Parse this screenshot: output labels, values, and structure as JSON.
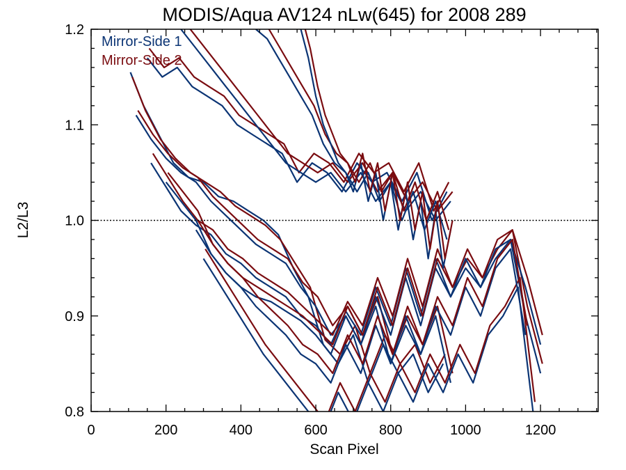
{
  "chart_data": {
    "type": "line",
    "title": "MODIS/Aqua AV124 nLw(645) for 2008 289",
    "xlabel": "Scan Pixel",
    "ylabel": "L2/L3",
    "xlim": [
      0,
      1354
    ],
    "ylim": [
      0.8,
      1.2
    ],
    "xticks": [
      0,
      200,
      400,
      600,
      800,
      1000,
      1200
    ],
    "xtick_labels": [
      "0",
      "200",
      "400",
      "600",
      "800",
      "1000",
      "1200"
    ],
    "yticks": [
      0.8,
      0.9,
      1.0,
      1.1,
      1.2
    ],
    "ytick_labels": [
      "0.8",
      "0.9",
      "1.0",
      "1.1",
      "1.2"
    ],
    "reference_line": {
      "y": 1.0,
      "style": "dotted"
    },
    "grid": false,
    "legend_position": "top-left",
    "colors": {
      "mirror_side_1": "#0b3474",
      "mirror_side_2": "#7a0c10",
      "reference": "#000000"
    },
    "legend": [
      {
        "name": "Mirror-Side 1",
        "color": "#0b3474"
      },
      {
        "name": "Mirror-Side 2",
        "color": "#7a0c10"
      }
    ],
    "series": [
      {
        "mirror": 1,
        "x": [
          105,
          140,
          180,
          220,
          260,
          300,
          340,
          380,
          420,
          460,
          500,
          540,
          580,
          620,
          660,
          700,
          740,
          780,
          820,
          860,
          900,
          940
        ],
        "y": [
          1.155,
          1.12,
          1.09,
          1.06,
          1.045,
          1.04,
          1.025,
          1.02,
          1.01,
          1.0,
          0.985,
          0.95,
          0.92,
          0.87,
          0.85,
          0.88,
          0.83,
          0.87,
          0.84,
          0.86,
          0.82,
          0.85
        ]
      },
      {
        "mirror": 2,
        "x": [
          110,
          145,
          185,
          225,
          265,
          305,
          345,
          385,
          425,
          465,
          505,
          545,
          585,
          625,
          665,
          705,
          745,
          785,
          825,
          865,
          905,
          945
        ],
        "y": [
          1.15,
          1.115,
          1.085,
          1.065,
          1.05,
          1.04,
          1.03,
          1.015,
          1.005,
          0.995,
          0.98,
          0.955,
          0.93,
          0.875,
          0.86,
          0.89,
          0.84,
          0.88,
          0.85,
          0.87,
          0.83,
          0.86
        ]
      },
      {
        "mirror": 1,
        "x": [
          120,
          160,
          200,
          240,
          280,
          320,
          360,
          400,
          440,
          480,
          520,
          560,
          600,
          640,
          680,
          720,
          760,
          800,
          840,
          880,
          920,
          960
        ],
        "y": [
          1.11,
          1.085,
          1.065,
          1.05,
          1.04,
          1.02,
          1.005,
          0.99,
          0.975,
          0.965,
          0.955,
          0.93,
          0.91,
          0.88,
          0.9,
          0.87,
          0.91,
          0.85,
          0.89,
          0.86,
          0.9,
          0.83
        ]
      },
      {
        "mirror": 2,
        "x": [
          125,
          165,
          205,
          245,
          285,
          325,
          365,
          405,
          445,
          485,
          525,
          565,
          605,
          645,
          685,
          725,
          765,
          805,
          845,
          885,
          925,
          965
        ],
        "y": [
          1.115,
          1.09,
          1.07,
          1.055,
          1.045,
          1.025,
          1.01,
          0.995,
          0.98,
          0.97,
          0.96,
          0.935,
          0.92,
          0.89,
          0.91,
          0.88,
          0.92,
          0.86,
          0.9,
          0.87,
          0.91,
          0.84
        ]
      },
      {
        "mirror": 1,
        "x": [
          160,
          200,
          240,
          280,
          320,
          360,
          400,
          440,
          480,
          520,
          560,
          600,
          640,
          680,
          720,
          760,
          800,
          840,
          880,
          920,
          960,
          1000,
          1040,
          1080,
          1120,
          1160,
          1200
        ],
        "y": [
          1.06,
          1.035,
          1.01,
          0.995,
          0.985,
          0.965,
          0.955,
          0.94,
          0.93,
          0.92,
          0.9,
          0.89,
          0.87,
          0.905,
          0.88,
          0.93,
          0.89,
          0.95,
          0.9,
          0.96,
          0.92,
          0.95,
          0.93,
          0.96,
          0.98,
          0.9,
          0.84
        ]
      },
      {
        "mirror": 2,
        "x": [
          165,
          205,
          245,
          285,
          325,
          365,
          405,
          445,
          485,
          525,
          565,
          605,
          645,
          685,
          725,
          765,
          805,
          845,
          885,
          925,
          965,
          1005,
          1045,
          1085,
          1125,
          1165,
          1205
        ],
        "y": [
          1.07,
          1.045,
          1.02,
          1.0,
          0.99,
          0.97,
          0.96,
          0.945,
          0.935,
          0.925,
          0.91,
          0.895,
          0.88,
          0.915,
          0.89,
          0.94,
          0.9,
          0.96,
          0.91,
          0.97,
          0.93,
          0.96,
          0.94,
          0.97,
          0.99,
          0.91,
          0.85
        ]
      },
      {
        "mirror": 1,
        "x": [
          200,
          240,
          280,
          320,
          360,
          400,
          440,
          480,
          520,
          560,
          600,
          640,
          680,
          720,
          760,
          800,
          840,
          880,
          920,
          960,
          1000,
          1040,
          1080,
          1120,
          1160,
          1200
        ],
        "y": [
          1.04,
          1.02,
          1.0,
          0.965,
          0.945,
          0.93,
          0.92,
          0.915,
          0.905,
          0.895,
          0.88,
          0.86,
          0.9,
          0.87,
          0.92,
          0.88,
          0.94,
          0.89,
          0.95,
          0.92,
          0.96,
          0.93,
          0.97,
          0.98,
          0.93,
          0.87
        ]
      },
      {
        "mirror": 2,
        "x": [
          205,
          245,
          285,
          325,
          365,
          405,
          445,
          485,
          525,
          565,
          605,
          645,
          685,
          725,
          765,
          805,
          845,
          885,
          925,
          965,
          1005,
          1045,
          1085,
          1125,
          1165,
          1205
        ],
        "y": [
          1.05,
          1.03,
          1.01,
          0.975,
          0.955,
          0.94,
          0.93,
          0.92,
          0.91,
          0.9,
          0.885,
          0.87,
          0.91,
          0.88,
          0.93,
          0.89,
          0.95,
          0.9,
          0.96,
          0.93,
          0.97,
          0.94,
          0.98,
          0.99,
          0.94,
          0.88
        ]
      },
      {
        "mirror": 1,
        "x": [
          300,
          340,
          380,
          420,
          460,
          500,
          540,
          580,
          620,
          660,
          700,
          740,
          780,
          820,
          860,
          900,
          940,
          980,
          1020,
          1060,
          1100,
          1140,
          1180
        ],
        "y": [
          0.96,
          0.935,
          0.91,
          0.885,
          0.86,
          0.84,
          0.82,
          0.8,
          0.78,
          0.82,
          0.79,
          0.83,
          0.8,
          0.84,
          0.81,
          0.85,
          0.82,
          0.86,
          0.83,
          0.88,
          0.9,
          0.93,
          0.8
        ]
      },
      {
        "mirror": 2,
        "x": [
          305,
          345,
          385,
          425,
          465,
          505,
          545,
          585,
          625,
          665,
          705,
          745,
          785,
          825,
          865,
          905,
          945,
          985,
          1025,
          1065,
          1105,
          1145,
          1185
        ],
        "y": [
          0.97,
          0.945,
          0.92,
          0.895,
          0.87,
          0.85,
          0.83,
          0.81,
          0.79,
          0.83,
          0.8,
          0.84,
          0.81,
          0.85,
          0.82,
          0.86,
          0.83,
          0.87,
          0.84,
          0.89,
          0.91,
          0.94,
          0.81
        ]
      },
      {
        "mirror": 1,
        "x": [
          280,
          320,
          360,
          400,
          440,
          480,
          520,
          560,
          600,
          640,
          680,
          720,
          760,
          800,
          840,
          880,
          920,
          960,
          1000,
          1040,
          1080,
          1120,
          1160
        ],
        "y": [
          0.99,
          0.965,
          0.945,
          0.93,
          0.91,
          0.895,
          0.88,
          0.86,
          0.85,
          0.83,
          0.87,
          0.84,
          0.89,
          0.85,
          0.9,
          0.86,
          0.91,
          0.88,
          0.93,
          0.9,
          0.95,
          0.97,
          0.88
        ]
      },
      {
        "mirror": 2,
        "x": [
          285,
          325,
          365,
          405,
          445,
          485,
          525,
          565,
          605,
          645,
          685,
          725,
          765,
          805,
          845,
          885,
          925,
          965,
          1005,
          1045,
          1085,
          1125,
          1165
        ],
        "y": [
          1.0,
          0.975,
          0.955,
          0.94,
          0.92,
          0.905,
          0.89,
          0.87,
          0.86,
          0.84,
          0.88,
          0.85,
          0.9,
          0.86,
          0.91,
          0.87,
          0.92,
          0.89,
          0.94,
          0.91,
          0.96,
          0.98,
          0.89
        ]
      },
      {
        "mirror": 1,
        "x": [
          150,
          190,
          230,
          270,
          310,
          350,
          390,
          430,
          470,
          510,
          550,
          590,
          630,
          670,
          710,
          750,
          790,
          830,
          870,
          910,
          950
        ],
        "y": [
          1.17,
          1.15,
          1.16,
          1.14,
          1.13,
          1.12,
          1.1,
          1.09,
          1.08,
          1.07,
          1.04,
          1.06,
          1.05,
          1.03,
          1.06,
          1.04,
          1.05,
          1.02,
          1.05,
          1.0,
          1.03
        ]
      },
      {
        "mirror": 2,
        "x": [
          155,
          195,
          235,
          275,
          315,
          355,
          395,
          435,
          475,
          515,
          555,
          595,
          635,
          675,
          715,
          755,
          795,
          835,
          875,
          915,
          955
        ],
        "y": [
          1.18,
          1.16,
          1.17,
          1.15,
          1.14,
          1.13,
          1.11,
          1.1,
          1.09,
          1.08,
          1.05,
          1.07,
          1.06,
          1.04,
          1.07,
          1.05,
          1.06,
          1.03,
          1.06,
          1.01,
          1.04
        ]
      },
      {
        "mirror": 1,
        "x": [
          240,
          280,
          320,
          360,
          400,
          440,
          480,
          520,
          560,
          600,
          640,
          680,
          720,
          760,
          800,
          840,
          880,
          920,
          960
        ],
        "y": [
          1.2,
          1.18,
          1.16,
          1.14,
          1.12,
          1.1,
          1.08,
          1.06,
          1.05,
          1.04,
          1.05,
          1.03,
          1.05,
          1.02,
          1.04,
          1.01,
          1.03,
          1.0,
          1.02
        ]
      },
      {
        "mirror": 2,
        "x": [
          245,
          285,
          325,
          365,
          405,
          445,
          485,
          525,
          565,
          605,
          645,
          685,
          725,
          765,
          805,
          845,
          885,
          925,
          965
        ],
        "y": [
          1.21,
          1.19,
          1.17,
          1.15,
          1.13,
          1.11,
          1.09,
          1.07,
          1.06,
          1.05,
          1.06,
          1.04,
          1.06,
          1.03,
          1.05,
          1.02,
          1.04,
          1.01,
          1.03
        ]
      },
      {
        "mirror": 1,
        "x": [
          440,
          470,
          500,
          530,
          560,
          590,
          620,
          650,
          680,
          710,
          740,
          770,
          800,
          830,
          860,
          890,
          920,
          950
        ],
        "y": [
          1.2,
          1.19,
          1.17,
          1.15,
          1.13,
          1.11,
          1.08,
          1.06,
          1.05,
          1.03,
          1.05,
          1.02,
          1.04,
          1.0,
          1.03,
          0.99,
          1.02,
          0.98
        ]
      },
      {
        "mirror": 2,
        "x": [
          445,
          475,
          505,
          535,
          565,
          595,
          625,
          655,
          685,
          715,
          745,
          775,
          805,
          835,
          865,
          895,
          925,
          955
        ],
        "y": [
          1.21,
          1.2,
          1.18,
          1.16,
          1.14,
          1.12,
          1.09,
          1.07,
          1.06,
          1.04,
          1.06,
          1.03,
          1.05,
          1.01,
          1.04,
          1.0,
          1.03,
          0.99
        ]
      },
      {
        "mirror": 1,
        "x": [
          560,
          580,
          600,
          620,
          640,
          660,
          680,
          700,
          720,
          740,
          760,
          780,
          800,
          820,
          840,
          860,
          880,
          900,
          920,
          940,
          960
        ],
        "y": [
          1.2,
          1.17,
          1.13,
          1.1,
          1.08,
          1.06,
          1.05,
          1.03,
          1.06,
          1.02,
          1.05,
          1.0,
          1.04,
          0.99,
          1.03,
          0.98,
          1.02,
          0.96,
          1.01,
          0.95,
          0.99
        ]
      },
      {
        "mirror": 2,
        "x": [
          565,
          585,
          605,
          625,
          645,
          665,
          685,
          705,
          725,
          745,
          765,
          785,
          805,
          825,
          845,
          865,
          885,
          905,
          925,
          945,
          965
        ],
        "y": [
          1.21,
          1.18,
          1.14,
          1.11,
          1.09,
          1.07,
          1.06,
          1.04,
          1.07,
          1.03,
          1.06,
          1.01,
          1.05,
          1.0,
          1.04,
          0.99,
          1.03,
          0.97,
          1.02,
          0.96,
          1.0
        ]
      }
    ]
  }
}
